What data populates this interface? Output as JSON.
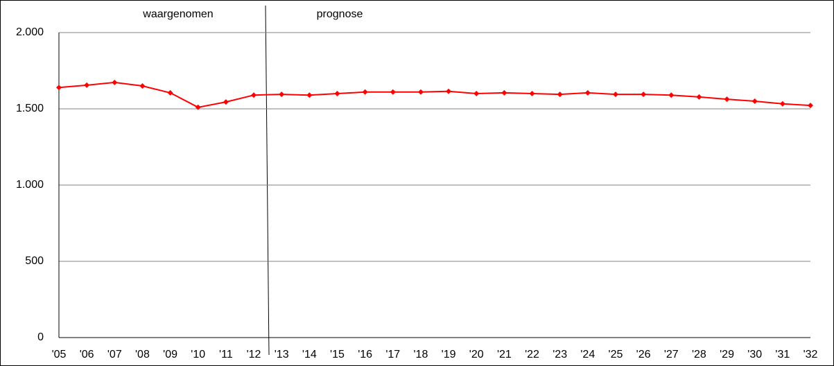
{
  "chart_data": {
    "type": "line",
    "annotations": [
      "waargenomen",
      "prognose"
    ],
    "categories": [
      "'05",
      "'06",
      "'07",
      "'08",
      "'09",
      "'10",
      "'11",
      "'12",
      "'13",
      "'14",
      "'15",
      "'16",
      "'17",
      "'18",
      "'19",
      "'20",
      "'21",
      "'22",
      "'23",
      "'24",
      "'25",
      "'26",
      "'27",
      "'28",
      "'29",
      "'30",
      "'31",
      "'32"
    ],
    "values": [
      1640,
      1655,
      1673,
      1650,
      1605,
      1510,
      1545,
      1590,
      1595,
      1590,
      1600,
      1610,
      1610,
      1610,
      1615,
      1600,
      1605,
      1600,
      1595,
      1605,
      1595,
      1595,
      1590,
      1578,
      1563,
      1550,
      1533,
      1522
    ],
    "color": "#ff0000",
    "ylim": [
      0,
      2000
    ],
    "yticks": [
      0,
      500,
      {
        "value": 1000,
        "label": "1.000"
      },
      {
        "value": 1500,
        "label": "1.500"
      },
      {
        "value": 2000,
        "label": "2.000"
      }
    ],
    "grid": true
  }
}
